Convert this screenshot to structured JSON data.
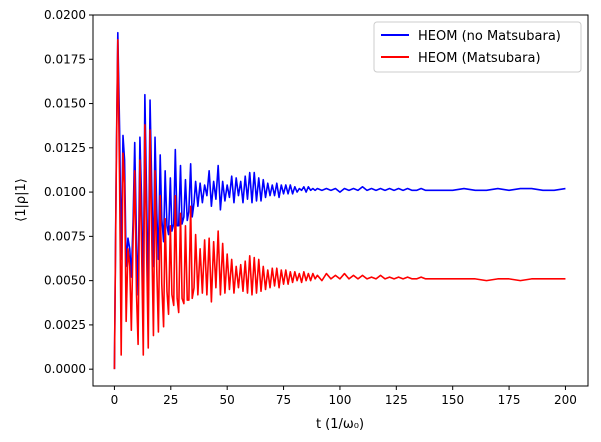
{
  "chart_data": {
    "type": "line",
    "xlabel": "t (1/ω₀)",
    "ylabel": "⟨1|ρ|1⟩",
    "xlim": [
      -9.5,
      210
    ],
    "ylim": [
      -0.00095,
      0.02
    ],
    "xticks": [
      0,
      25,
      50,
      75,
      100,
      125,
      150,
      175,
      200
    ],
    "yticks": [
      0.0,
      0.0025,
      0.005,
      0.0075,
      0.01,
      0.0125,
      0.015,
      0.0175,
      0.02
    ],
    "xtick_labels": [
      "0",
      "25",
      "50",
      "75",
      "100",
      "125",
      "150",
      "175",
      "200"
    ],
    "ytick_labels": [
      "0.0000",
      "0.0025",
      "0.0050",
      "0.0075",
      "0.0100",
      "0.0125",
      "0.0150",
      "0.0175",
      "0.0200"
    ],
    "grid": false,
    "legend_position": "upper right",
    "series": [
      {
        "name": "HEOM (no Matsubara)",
        "color": "#0000ff",
        "x": [
          0,
          0.8,
          1.5,
          2.3,
          3.0,
          3.8,
          4.5,
          5.2,
          6.0,
          6.8,
          7.5,
          8.3,
          9.0,
          9.8,
          10.5,
          11.3,
          12.0,
          12.8,
          13.5,
          14.3,
          15.0,
          15.8,
          16.5,
          17.3,
          18.0,
          18.8,
          19.5,
          20.3,
          21.0,
          21.8,
          22.5,
          23.3,
          24.0,
          24.8,
          25.5,
          26.3,
          27.0,
          27.8,
          28.5,
          29.3,
          30.0,
          30.8,
          31.5,
          32.3,
          33.0,
          33.8,
          34.5,
          35.3,
          36.0,
          37.0,
          38.0,
          39.0,
          40.0,
          41.0,
          42.0,
          43.0,
          44.0,
          45.0,
          46.0,
          47.0,
          48.0,
          49.0,
          50.0,
          51.0,
          52.0,
          53.0,
          54.0,
          55.0,
          56.0,
          57.0,
          58.0,
          59.0,
          60.0,
          61.0,
          62.0,
          63.0,
          64.0,
          65.0,
          66.0,
          67.0,
          68.0,
          69.0,
          70.0,
          71.0,
          72.0,
          73.0,
          74.0,
          75.0,
          76.0,
          77.0,
          78.0,
          79.0,
          80.0,
          81.0,
          82.0,
          83.0,
          84.0,
          85.0,
          86.0,
          87.0,
          88.0,
          89.0,
          90.0,
          92.0,
          94.0,
          96.0,
          98.0,
          100.0,
          102.0,
          104.0,
          106.0,
          108.0,
          110.0,
          112.0,
          114.0,
          116.0,
          118.0,
          120.0,
          122.0,
          124.0,
          126.0,
          128.0,
          130.0,
          132.0,
          134.0,
          136.0,
          138.0,
          140.0,
          145.0,
          150.0,
          155.0,
          160.0,
          165.0,
          170.0,
          175.0,
          180.0,
          185.0,
          190.0,
          195.0,
          200.0
        ],
        "y": [
          0.0,
          0.0115,
          0.019,
          0.0135,
          0.0062,
          0.0132,
          0.0118,
          0.0058,
          0.0074,
          0.0068,
          0.0052,
          0.0085,
          0.0128,
          0.0072,
          0.0042,
          0.0131,
          0.0098,
          0.0042,
          0.0155,
          0.0095,
          0.0042,
          0.0152,
          0.0106,
          0.0058,
          0.0131,
          0.0088,
          0.0062,
          0.0121,
          0.0085,
          0.0072,
          0.0112,
          0.0081,
          0.0076,
          0.0108,
          0.0078,
          0.0082,
          0.0124,
          0.0081,
          0.0081,
          0.0115,
          0.0082,
          0.0086,
          0.0107,
          0.0084,
          0.0089,
          0.0116,
          0.0086,
          0.0094,
          0.0106,
          0.0092,
          0.0105,
          0.0094,
          0.0104,
          0.0098,
          0.0112,
          0.0092,
          0.0106,
          0.0096,
          0.0115,
          0.009,
          0.0106,
          0.0095,
          0.0104,
          0.0097,
          0.0109,
          0.0094,
          0.0108,
          0.0098,
          0.0106,
          0.0094,
          0.0109,
          0.0096,
          0.0111,
          0.0094,
          0.0111,
          0.0095,
          0.0108,
          0.0095,
          0.0107,
          0.0097,
          0.0105,
          0.0098,
          0.0104,
          0.0098,
          0.0105,
          0.0097,
          0.0104,
          0.0099,
          0.0104,
          0.0099,
          0.0104,
          0.0099,
          0.0103,
          0.01,
          0.0102,
          0.0101,
          0.0103,
          0.01,
          0.0103,
          0.0101,
          0.0102,
          0.0101,
          0.0102,
          0.0101,
          0.0102,
          0.0101,
          0.0102,
          0.01,
          0.0102,
          0.0101,
          0.0102,
          0.0101,
          0.0103,
          0.0101,
          0.0102,
          0.0101,
          0.0102,
          0.0101,
          0.0102,
          0.0101,
          0.0102,
          0.0101,
          0.0102,
          0.0101,
          0.0101,
          0.0102,
          0.0101,
          0.0101,
          0.0101,
          0.0101,
          0.0102,
          0.0101,
          0.0101,
          0.0102,
          0.0101,
          0.0102,
          0.0102,
          0.0101,
          0.0101,
          0.0102
        ]
      },
      {
        "name": "HEOM (Matsubara)",
        "color": "#ff0000",
        "x": [
          0,
          0.8,
          1.5,
          2.3,
          3.0,
          3.8,
          4.5,
          5.2,
          6.0,
          6.8,
          7.5,
          8.3,
          9.0,
          9.8,
          10.5,
          11.3,
          12.0,
          12.8,
          13.5,
          14.3,
          15.0,
          15.8,
          16.5,
          17.3,
          18.0,
          18.8,
          19.5,
          20.3,
          21.0,
          21.8,
          22.5,
          23.3,
          24.0,
          24.8,
          25.5,
          26.3,
          27.0,
          27.8,
          28.5,
          29.3,
          30.0,
          30.8,
          31.5,
          32.3,
          33.0,
          33.8,
          34.5,
          35.3,
          36.0,
          37.0,
          38.0,
          39.0,
          40.0,
          41.0,
          42.0,
          43.0,
          44.0,
          45.0,
          46.0,
          47.0,
          48.0,
          49.0,
          50.0,
          51.0,
          52.0,
          53.0,
          54.0,
          55.0,
          56.0,
          57.0,
          58.0,
          59.0,
          60.0,
          61.0,
          62.0,
          63.0,
          64.0,
          65.0,
          66.0,
          67.0,
          68.0,
          69.0,
          70.0,
          71.0,
          72.0,
          73.0,
          74.0,
          75.0,
          76.0,
          77.0,
          78.0,
          79.0,
          80.0,
          81.0,
          82.0,
          83.0,
          84.0,
          85.0,
          86.0,
          87.0,
          88.0,
          89.0,
          90.0,
          92.0,
          94.0,
          96.0,
          98.0,
          100.0,
          102.0,
          104.0,
          106.0,
          108.0,
          110.0,
          112.0,
          114.0,
          116.0,
          118.0,
          120.0,
          122.0,
          124.0,
          126.0,
          128.0,
          130.0,
          132.0,
          134.0,
          136.0,
          138.0,
          140.0,
          145.0,
          150.0,
          155.0,
          160.0,
          165.0,
          170.0,
          175.0,
          180.0,
          185.0,
          190.0,
          195.0,
          200.0
        ],
        "y": [
          0.0,
          0.011,
          0.0186,
          0.0105,
          0.0008,
          0.0122,
          0.0105,
          0.0027,
          0.0068,
          0.0058,
          0.0022,
          0.0075,
          0.0112,
          0.0042,
          0.0014,
          0.0118,
          0.0072,
          0.0008,
          0.0138,
          0.0065,
          0.0012,
          0.0135,
          0.0078,
          0.0019,
          0.0112,
          0.0055,
          0.0021,
          0.0098,
          0.0048,
          0.0024,
          0.0085,
          0.0044,
          0.0031,
          0.0081,
          0.0042,
          0.0036,
          0.0098,
          0.004,
          0.0032,
          0.0088,
          0.004,
          0.0037,
          0.0081,
          0.0039,
          0.0039,
          0.0092,
          0.004,
          0.0046,
          0.0076,
          0.0042,
          0.0068,
          0.0043,
          0.0073,
          0.0042,
          0.0074,
          0.0038,
          0.0072,
          0.0046,
          0.0078,
          0.0042,
          0.0071,
          0.0043,
          0.0065,
          0.0045,
          0.0062,
          0.0043,
          0.0058,
          0.0046,
          0.0059,
          0.0044,
          0.0061,
          0.0043,
          0.0064,
          0.0042,
          0.0063,
          0.0043,
          0.0062,
          0.0044,
          0.0058,
          0.0045,
          0.0056,
          0.0046,
          0.0057,
          0.0047,
          0.0057,
          0.0046,
          0.0056,
          0.0048,
          0.0056,
          0.0048,
          0.0055,
          0.0049,
          0.0055,
          0.005,
          0.0054,
          0.0049,
          0.0055,
          0.005,
          0.0054,
          0.005,
          0.0054,
          0.0051,
          0.0053,
          0.005,
          0.0054,
          0.0051,
          0.0053,
          0.0051,
          0.0054,
          0.0051,
          0.0053,
          0.0051,
          0.0053,
          0.0051,
          0.0052,
          0.0051,
          0.0053,
          0.0051,
          0.0052,
          0.0051,
          0.0052,
          0.0051,
          0.0052,
          0.0051,
          0.0051,
          0.0052,
          0.0051,
          0.0051,
          0.0051,
          0.0051,
          0.0051,
          0.0051,
          0.005,
          0.0051,
          0.0051,
          0.005,
          0.0051,
          0.0051,
          0.0051,
          0.0051
        ]
      }
    ]
  }
}
